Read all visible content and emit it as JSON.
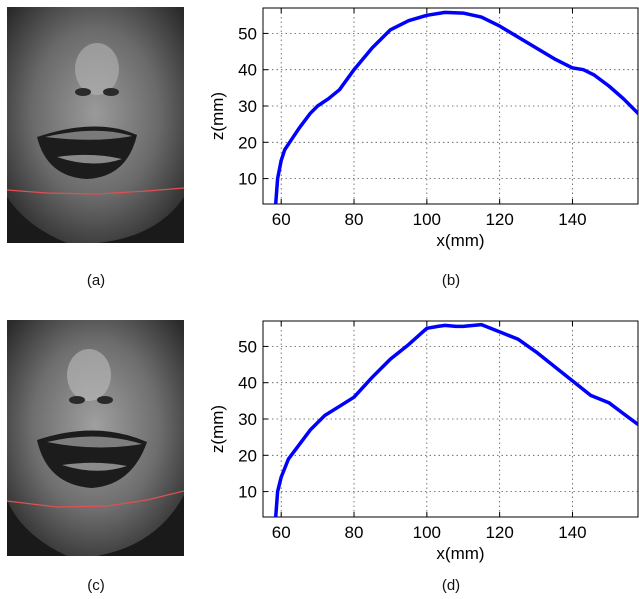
{
  "captions": {
    "a": "(a)",
    "b": "(b)",
    "c": "(c)",
    "d": "(d)"
  },
  "chart_data": [
    {
      "type": "line",
      "panel": "b",
      "title": "",
      "xlabel": "x(mm)",
      "ylabel": "z(mm)",
      "xlim": [
        55,
        158
      ],
      "ylim": [
        3,
        57
      ],
      "xticks": [
        60,
        80,
        100,
        120,
        140
      ],
      "yticks": [
        10,
        20,
        30,
        40,
        50
      ],
      "grid": true,
      "series": [
        {
          "color": "#0000ff",
          "x": [
            58.5,
            59,
            60,
            61,
            63,
            65,
            68,
            70,
            73,
            76,
            80,
            85,
            90,
            95,
            100,
            105,
            110,
            115,
            120,
            125,
            130,
            135,
            140,
            143,
            146,
            150,
            154,
            158
          ],
          "y": [
            3,
            10,
            15,
            18,
            21,
            24,
            28,
            30,
            32,
            34.5,
            40,
            46,
            51,
            53.5,
            55,
            55.8,
            55.6,
            54.5,
            52,
            49,
            46,
            43,
            40.5,
            40,
            38.5,
            35.5,
            32,
            28
          ]
        }
      ]
    },
    {
      "type": "line",
      "panel": "d",
      "title": "",
      "xlabel": "x(mm)",
      "ylabel": "z(mm)",
      "xlim": [
        55,
        158
      ],
      "ylim": [
        3,
        57
      ],
      "xticks": [
        60,
        80,
        100,
        120,
        140
      ],
      "yticks": [
        10,
        20,
        30,
        40,
        50
      ],
      "grid": true,
      "series": [
        {
          "color": "#0000ff",
          "x": [
            58.5,
            59,
            60,
            62,
            65,
            68,
            72,
            76,
            80,
            85,
            90,
            95,
            100,
            103,
            105,
            108,
            110,
            115,
            120,
            125,
            130,
            135,
            140,
            145,
            150,
            154,
            158
          ],
          "y": [
            3,
            10,
            14,
            19,
            23,
            27,
            31,
            33.5,
            36,
            41.5,
            46.5,
            50.5,
            55,
            55.5,
            55.8,
            55.5,
            55.5,
            56,
            54,
            52,
            48.5,
            44.5,
            40.5,
            36.5,
            34.5,
            31.5,
            28.5
          ]
        }
      ]
    }
  ],
  "colors": {
    "curve": "#0000ff",
    "profile_line": "#e05050"
  }
}
